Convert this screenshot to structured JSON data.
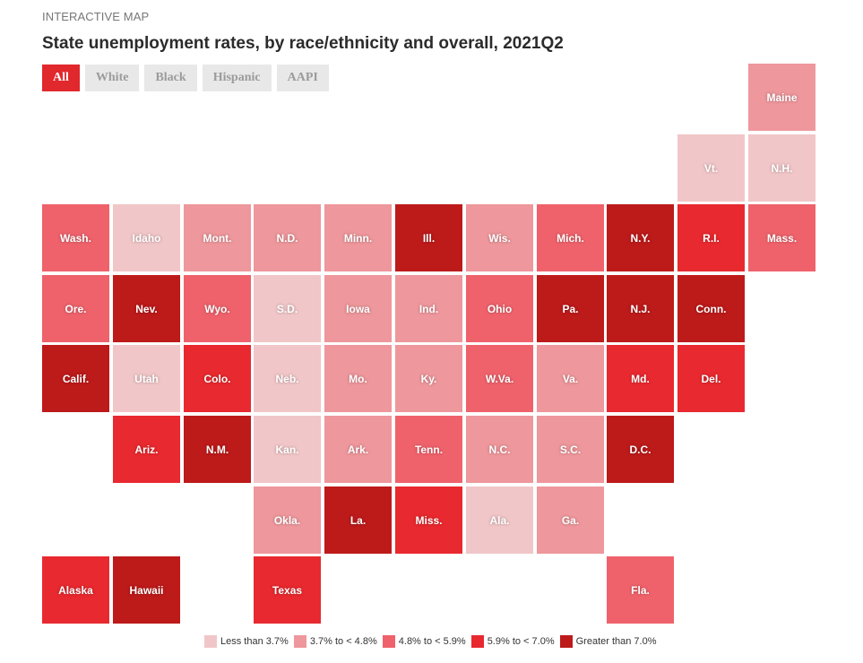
{
  "header": {
    "kicker": "INTERACTIVE MAP",
    "title": "State unemployment rates, by race/ethnicity and overall, 2021Q2"
  },
  "tabs": [
    {
      "label": "All",
      "active": true
    },
    {
      "label": "White",
      "active": false
    },
    {
      "label": "Black",
      "active": false
    },
    {
      "label": "Hispanic",
      "active": false
    },
    {
      "label": "AAPI",
      "active": false
    }
  ],
  "colors": {
    "bin0": "#f1c6c8",
    "bin1": "#ee979c",
    "bin2": "#ef626b",
    "bin3": "#e8292f",
    "bin4": "#bd1a1a",
    "tab_active": "#e1282d"
  },
  "legend": [
    {
      "label": "Less than 3.7%",
      "bin": 0
    },
    {
      "label": "3.7% to < 4.8%",
      "bin": 1
    },
    {
      "label": "4.8% to < 5.9%",
      "bin": 2
    },
    {
      "label": "5.9% to < 7.0%",
      "bin": 3
    },
    {
      "label": "Greater than 7.0%",
      "bin": 4
    }
  ],
  "chart_data": {
    "type": "heatmap",
    "title": "State unemployment rates, by race/ethnicity and overall, 2021Q2",
    "selected_group": "All",
    "bins": [
      "Less than 3.7%",
      "3.7% to < 4.8%",
      "4.8% to < 5.9%",
      "5.9% to < 7.0%",
      "Greater than 7.0%"
    ],
    "states": [
      {
        "label": "Maine",
        "row": 0,
        "col": 10,
        "bin": 1
      },
      {
        "label": "Vt.",
        "row": 1,
        "col": 9,
        "bin": 0
      },
      {
        "label": "N.H.",
        "row": 1,
        "col": 10,
        "bin": 0
      },
      {
        "label": "Wash.",
        "row": 2,
        "col": 0,
        "bin": 2
      },
      {
        "label": "Idaho",
        "row": 2,
        "col": 1,
        "bin": 0
      },
      {
        "label": "Mont.",
        "row": 2,
        "col": 2,
        "bin": 1
      },
      {
        "label": "N.D.",
        "row": 2,
        "col": 3,
        "bin": 1
      },
      {
        "label": "Minn.",
        "row": 2,
        "col": 4,
        "bin": 1
      },
      {
        "label": "Ill.",
        "row": 2,
        "col": 5,
        "bin": 4
      },
      {
        "label": "Wis.",
        "row": 2,
        "col": 6,
        "bin": 1
      },
      {
        "label": "Mich.",
        "row": 2,
        "col": 7,
        "bin": 2
      },
      {
        "label": "N.Y.",
        "row": 2,
        "col": 8,
        "bin": 4
      },
      {
        "label": "R.I.",
        "row": 2,
        "col": 9,
        "bin": 3
      },
      {
        "label": "Mass.",
        "row": 2,
        "col": 10,
        "bin": 2
      },
      {
        "label": "Ore.",
        "row": 3,
        "col": 0,
        "bin": 2
      },
      {
        "label": "Nev.",
        "row": 3,
        "col": 1,
        "bin": 4
      },
      {
        "label": "Wyo.",
        "row": 3,
        "col": 2,
        "bin": 2
      },
      {
        "label": "S.D.",
        "row": 3,
        "col": 3,
        "bin": 0
      },
      {
        "label": "Iowa",
        "row": 3,
        "col": 4,
        "bin": 1
      },
      {
        "label": "Ind.",
        "row": 3,
        "col": 5,
        "bin": 1
      },
      {
        "label": "Ohio",
        "row": 3,
        "col": 6,
        "bin": 2
      },
      {
        "label": "Pa.",
        "row": 3,
        "col": 7,
        "bin": 4
      },
      {
        "label": "N.J.",
        "row": 3,
        "col": 8,
        "bin": 4
      },
      {
        "label": "Conn.",
        "row": 3,
        "col": 9,
        "bin": 4
      },
      {
        "label": "Calif.",
        "row": 4,
        "col": 0,
        "bin": 4
      },
      {
        "label": "Utah",
        "row": 4,
        "col": 1,
        "bin": 0
      },
      {
        "label": "Colo.",
        "row": 4,
        "col": 2,
        "bin": 3
      },
      {
        "label": "Neb.",
        "row": 4,
        "col": 3,
        "bin": 0
      },
      {
        "label": "Mo.",
        "row": 4,
        "col": 4,
        "bin": 1
      },
      {
        "label": "Ky.",
        "row": 4,
        "col": 5,
        "bin": 1
      },
      {
        "label": "W.Va.",
        "row": 4,
        "col": 6,
        "bin": 2
      },
      {
        "label": "Va.",
        "row": 4,
        "col": 7,
        "bin": 1
      },
      {
        "label": "Md.",
        "row": 4,
        "col": 8,
        "bin": 3
      },
      {
        "label": "Del.",
        "row": 4,
        "col": 9,
        "bin": 3
      },
      {
        "label": "Ariz.",
        "row": 5,
        "col": 1,
        "bin": 3
      },
      {
        "label": "N.M.",
        "row": 5,
        "col": 2,
        "bin": 4
      },
      {
        "label": "Kan.",
        "row": 5,
        "col": 3,
        "bin": 0
      },
      {
        "label": "Ark.",
        "row": 5,
        "col": 4,
        "bin": 1
      },
      {
        "label": "Tenn.",
        "row": 5,
        "col": 5,
        "bin": 2
      },
      {
        "label": "N.C.",
        "row": 5,
        "col": 6,
        "bin": 1
      },
      {
        "label": "S.C.",
        "row": 5,
        "col": 7,
        "bin": 1
      },
      {
        "label": "D.C.",
        "row": 5,
        "col": 8,
        "bin": 4
      },
      {
        "label": "Okla.",
        "row": 6,
        "col": 3,
        "bin": 1
      },
      {
        "label": "La.",
        "row": 6,
        "col": 4,
        "bin": 4
      },
      {
        "label": "Miss.",
        "row": 6,
        "col": 5,
        "bin": 3
      },
      {
        "label": "Ala.",
        "row": 6,
        "col": 6,
        "bin": 0
      },
      {
        "label": "Ga.",
        "row": 6,
        "col": 7,
        "bin": 1
      },
      {
        "label": "Alaska",
        "row": 7,
        "col": 0,
        "bin": 3
      },
      {
        "label": "Hawaii",
        "row": 7,
        "col": 1,
        "bin": 4
      },
      {
        "label": "Texas",
        "row": 7,
        "col": 3,
        "bin": 3
      },
      {
        "label": "Fla.",
        "row": 7,
        "col": 8,
        "bin": 2
      }
    ]
  }
}
